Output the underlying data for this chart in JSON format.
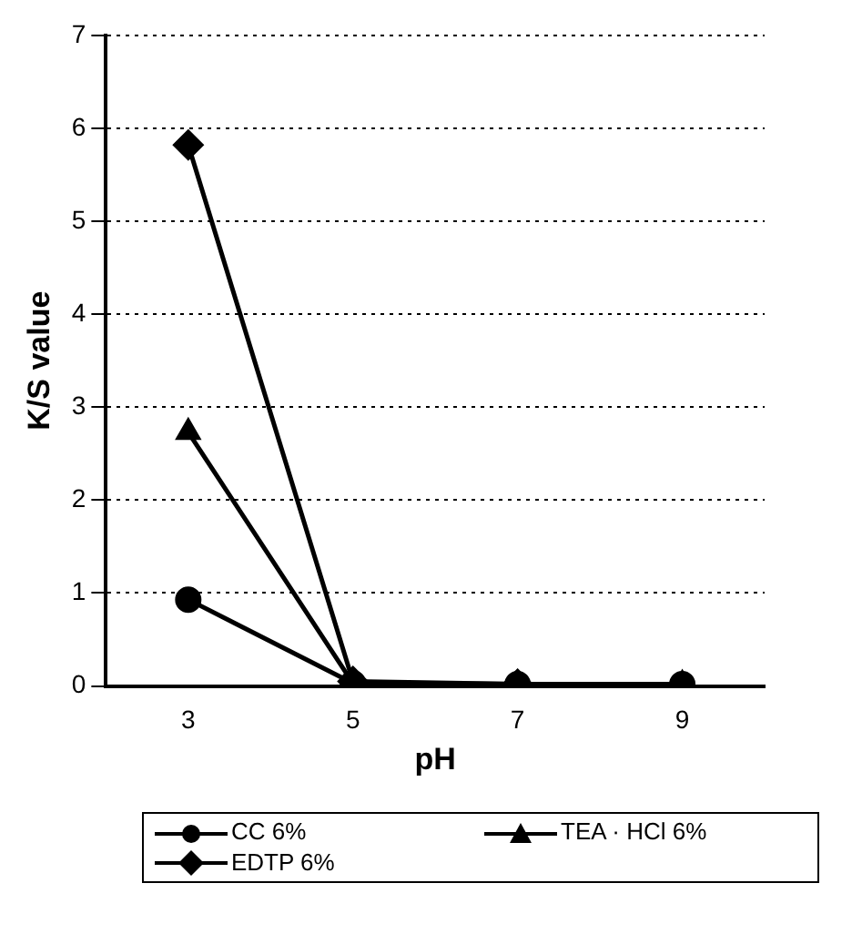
{
  "chart_data": {
    "type": "line",
    "xlabel": "pH",
    "ylabel": "K/S value",
    "categories": [
      "3",
      "5",
      "7",
      "9"
    ],
    "series": [
      {
        "name": "CC  6%",
        "color": "#000000",
        "marker": "circle",
        "values": [
          0.93,
          0.03,
          0.02,
          0.02
        ]
      },
      {
        "name": "TEA · HCl  6%",
        "color": "#000000",
        "marker": "triangle",
        "values": [
          2.73,
          0.03,
          0.02,
          0.02
        ]
      },
      {
        "name": "EDTP 6%",
        "color": "#000000",
        "marker": "diamond",
        "values": [
          5.82,
          0.05,
          0.02,
          null
        ]
      }
    ],
    "ylim": [
      0,
      7
    ],
    "yticks": [
      0,
      1,
      2,
      3,
      4,
      5,
      6,
      7
    ],
    "grid": "y",
    "legend": "bottom",
    "line_style": "solid"
  }
}
